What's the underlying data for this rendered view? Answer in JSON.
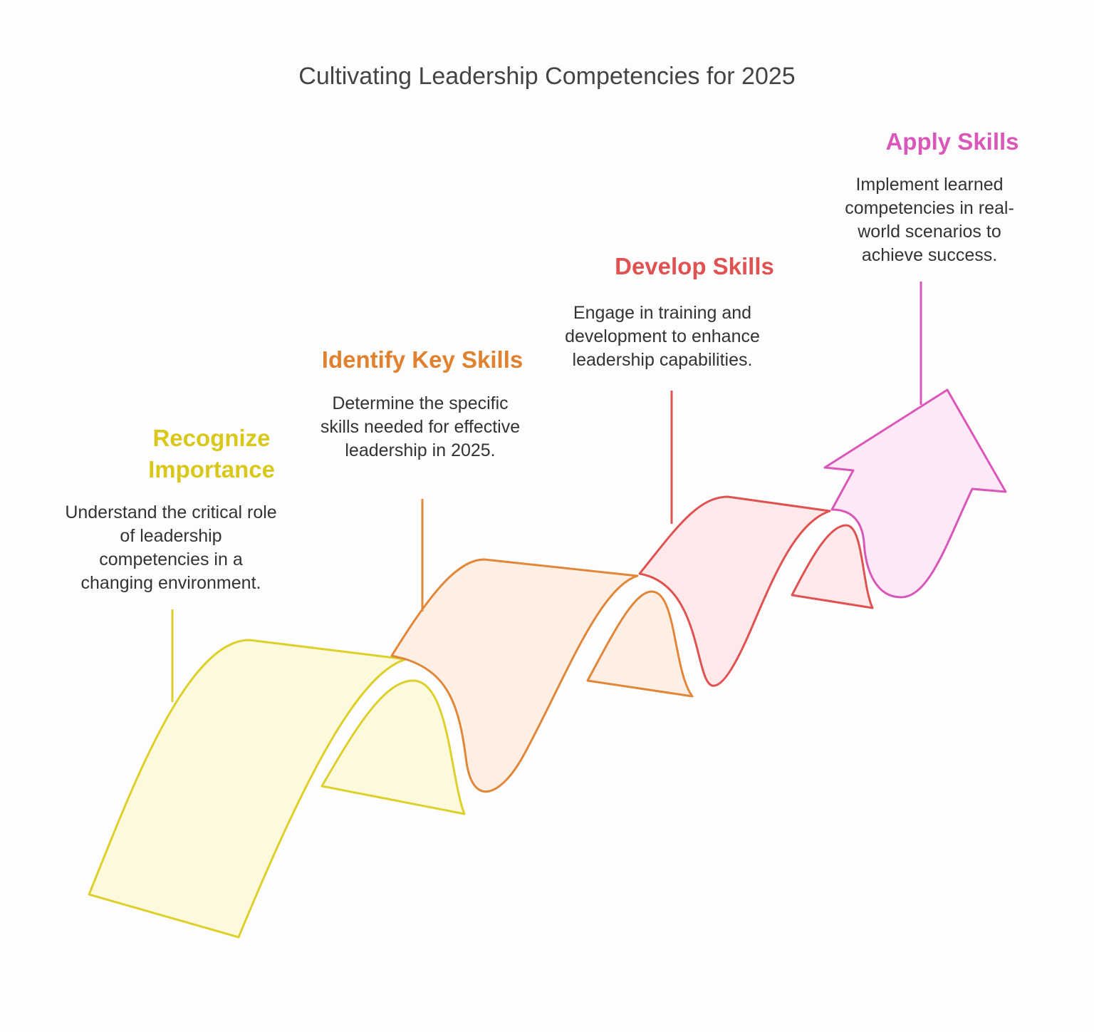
{
  "title": "Cultivating Leadership Competencies for 2025",
  "steps": [
    {
      "title": "Recognize Importance",
      "description": "Understand the critical role of leadership competencies in a changing environment."
    },
    {
      "title": "Identify Key Skills",
      "description": "Determine the specific skills needed for effective leadership in 2025."
    },
    {
      "title": "Develop Skills",
      "description": "Engage in training and development to enhance leadership capabilities."
    },
    {
      "title": "Apply Skills",
      "description": "Implement learned competencies in real-world scenarios to achieve success."
    }
  ]
}
